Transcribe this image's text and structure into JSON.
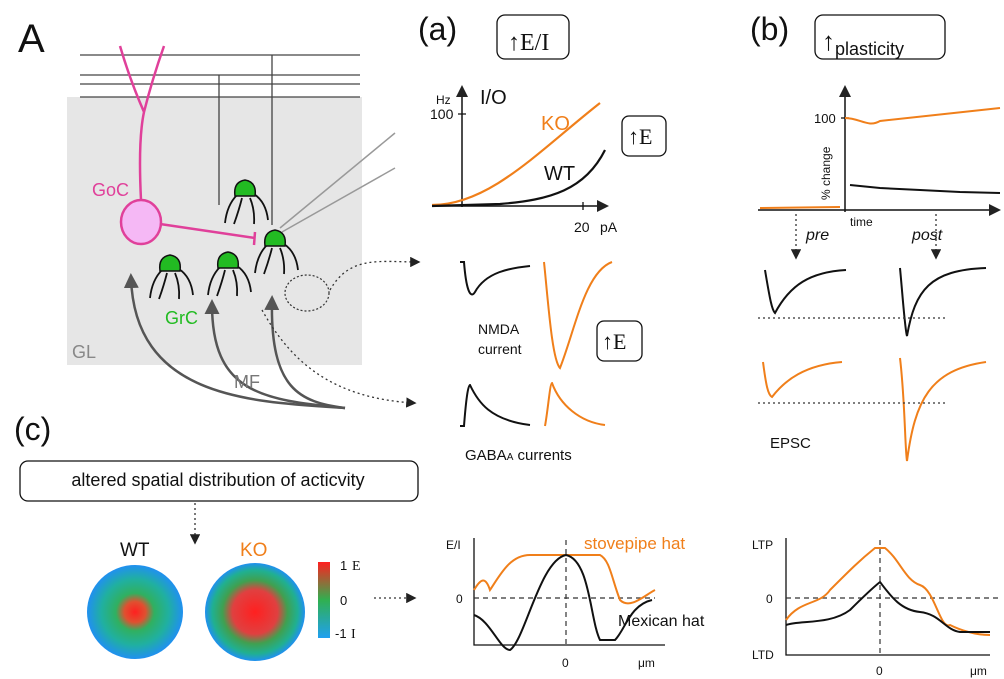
{
  "panel_labels": {
    "A": "A",
    "a": "(a)",
    "b": "(b)",
    "c": "(c)"
  },
  "circuit": {
    "goc": "GoC",
    "grc": "GrC",
    "gl": "GL",
    "mf": "MF"
  },
  "panel_a": {
    "box_ei": {
      "arrow": "↑",
      "text": "E/I"
    },
    "io_plot": {
      "y_unit": "Hz",
      "title": "I/O",
      "y_tick": "100",
      "ko": "KO",
      "wt": "WT",
      "x_tick": "20",
      "x_unit": "pA"
    },
    "box_e1": {
      "arrow": "↑",
      "text": "E"
    },
    "nmda": [
      "NMDA",
      "current"
    ],
    "box_e2": {
      "arrow": "↑",
      "text": "E"
    },
    "gaba": {
      "main": "GABA",
      "sub": "A",
      "rest": " currents"
    }
  },
  "panel_b": {
    "box": {
      "arrow": "↑",
      "text": "plasticity"
    },
    "plot": {
      "y_tick": "100",
      "y_label": "% change",
      "x_label": "time",
      "pre": "pre",
      "post": "post"
    },
    "epsc": "EPSC"
  },
  "panel_c": {
    "box": "altered spatial distribution of acticvity",
    "wt": "WT",
    "ko": "KO",
    "colorbar": {
      "top": "1",
      "top_label": "E",
      "mid": "0",
      "bottom": "-1",
      "bottom_label": "I"
    },
    "ei_plot": {
      "y_label": "E/I",
      "y_zero": "0",
      "stovepipe": "stovepipe hat",
      "mexican": "Mexican hat",
      "x_zero": "0",
      "x_unit": "μm"
    },
    "ltp_plot": {
      "y_top": "LTP",
      "y_zero": "0",
      "y_bottom": "LTD",
      "x_zero": "0",
      "x_unit": "μm"
    }
  }
}
